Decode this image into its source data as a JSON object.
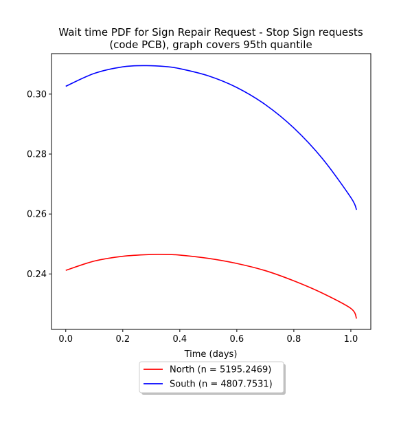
{
  "chart_data": {
    "type": "line",
    "title_line1": "Wait time PDF for Sign Repair Request - Stop Sign  requests",
    "title_line2": "(code PCB), graph covers 95th quantile",
    "xlabel": "Time (days)",
    "ylabel": "",
    "xlim": [
      -0.05,
      1.07
    ],
    "ylim": [
      0.2215,
      0.3135
    ],
    "x_ticks": [
      {
        "value": 0.0,
        "label": "0.0"
      },
      {
        "value": 0.2,
        "label": "0.2"
      },
      {
        "value": 0.4,
        "label": "0.4"
      },
      {
        "value": 0.6,
        "label": "0.6"
      },
      {
        "value": 0.8,
        "label": "0.8"
      },
      {
        "value": 1.0,
        "label": "1.0"
      }
    ],
    "y_ticks": [
      {
        "value": 0.24,
        "label": "0.24"
      },
      {
        "value": 0.26,
        "label": "0.26"
      },
      {
        "value": 0.28,
        "label": "0.28"
      },
      {
        "value": 0.3,
        "label": "0.30"
      }
    ],
    "grid": false,
    "legend_position": "below plot, centered",
    "series": [
      {
        "name": "North (n = 5195.2469)",
        "color": "#ff0000",
        "x": [
          0.0,
          0.1,
          0.2,
          0.3,
          0.35,
          0.4,
          0.5,
          0.6,
          0.7,
          0.8,
          0.9,
          1.0,
          1.02
        ],
        "y": [
          0.2412,
          0.2443,
          0.2459,
          0.2465,
          0.2465,
          0.2463,
          0.2452,
          0.2435,
          0.2411,
          0.2377,
          0.2336,
          0.2285,
          0.2251
        ]
      },
      {
        "name": "South (n = 4807.7531)",
        "color": "#0000ff",
        "x": [
          0.0,
          0.1,
          0.2,
          0.28,
          0.35,
          0.4,
          0.5,
          0.6,
          0.7,
          0.8,
          0.9,
          1.0,
          1.02
        ],
        "y": [
          0.3026,
          0.3069,
          0.3091,
          0.3095,
          0.3092,
          0.3085,
          0.3061,
          0.3022,
          0.2965,
          0.2887,
          0.2785,
          0.2655,
          0.2614
        ]
      }
    ]
  }
}
